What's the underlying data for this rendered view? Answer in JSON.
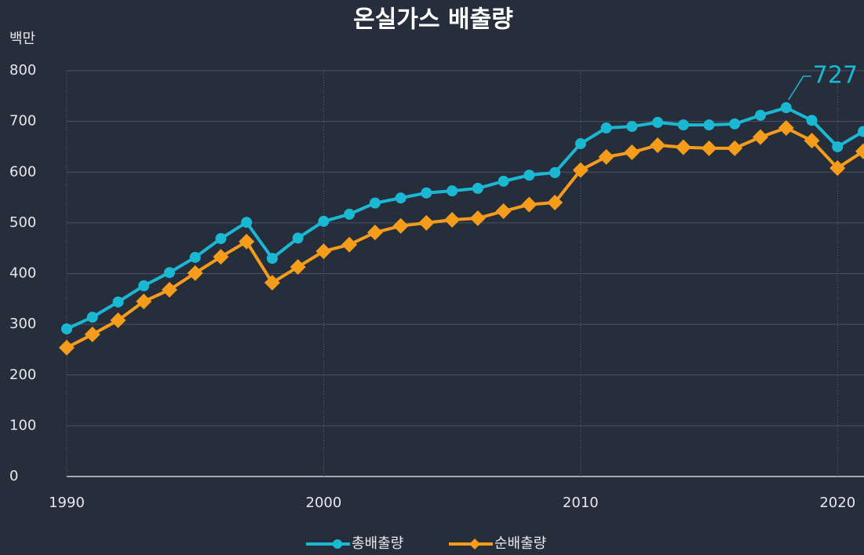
{
  "chart_data": {
    "type": "line",
    "title": "온실가스 배출량",
    "y_label": "백만",
    "x": [
      1990,
      1991,
      1992,
      1993,
      1994,
      1995,
      1996,
      1997,
      1998,
      1999,
      2000,
      2001,
      2002,
      2003,
      2004,
      2005,
      2006,
      2007,
      2008,
      2009,
      2010,
      2011,
      2012,
      2013,
      2014,
      2015,
      2016,
      2017,
      2018,
      2019,
      2020,
      2021
    ],
    "series": [
      {
        "name": "총배출량",
        "color": "#1bb8d4",
        "marker": "circle",
        "values": [
          291,
          314,
          344,
          376,
          402,
          432,
          469,
          501,
          430,
          470,
          503,
          517,
          539,
          549,
          559,
          563,
          568,
          582,
          594,
          599,
          656,
          687,
          690,
          698,
          693,
          693,
          695,
          712,
          727,
          702,
          650,
          680
        ]
      },
      {
        "name": "순배출량",
        "color": "#f59d1b",
        "marker": "diamond",
        "values": [
          254,
          280,
          308,
          345,
          368,
          401,
          433,
          463,
          382,
          413,
          444,
          457,
          481,
          494,
          500,
          506,
          509,
          523,
          536,
          540,
          604,
          630,
          639,
          653,
          649,
          647,
          647,
          669,
          687,
          662,
          608,
          641
        ]
      }
    ],
    "annotation": {
      "x": 2018,
      "label": "727"
    },
    "xlim": [
      1990,
      2021
    ],
    "xticks": [
      1990,
      2000,
      2010,
      2020
    ],
    "ylim": [
      0,
      800
    ],
    "yticks": [
      0,
      100,
      200,
      300,
      400,
      500,
      600,
      700,
      800
    ],
    "grid": true,
    "legend": "bottom"
  }
}
